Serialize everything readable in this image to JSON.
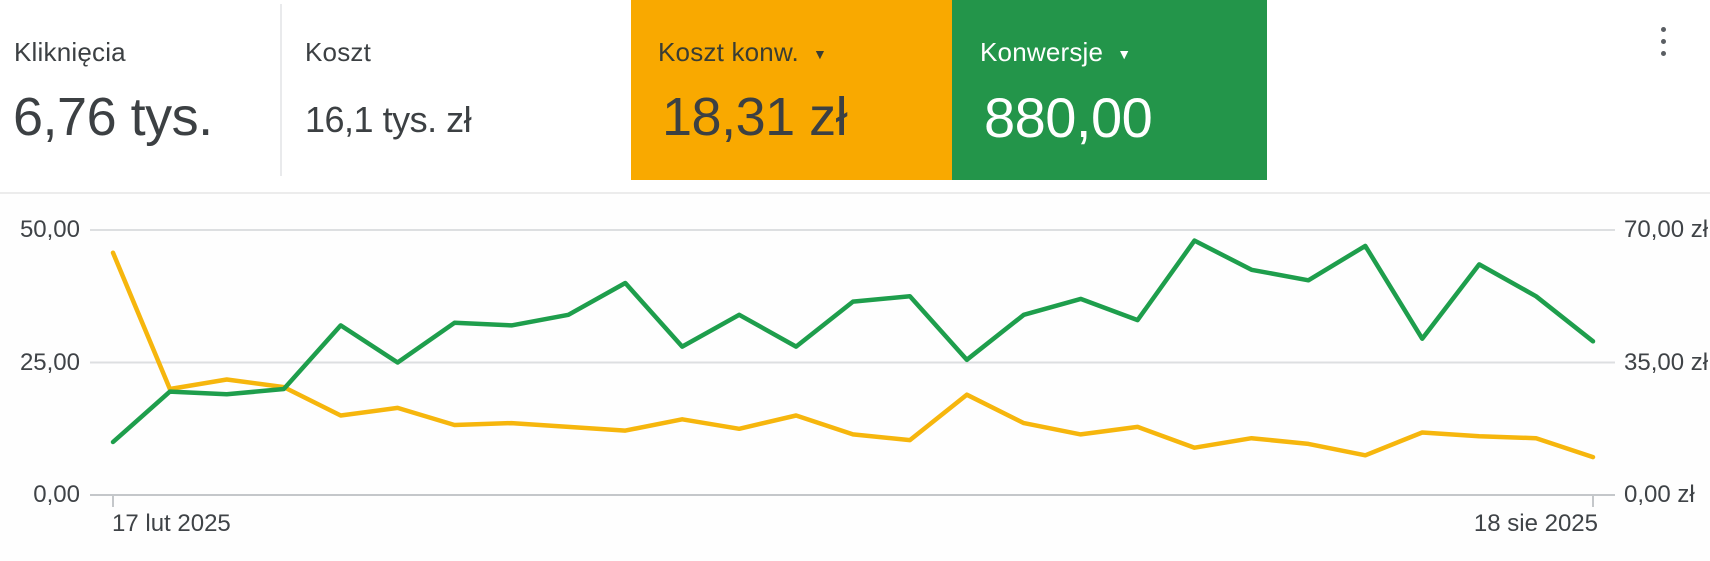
{
  "header": {
    "cards": [
      {
        "id": "clicks",
        "label": "Kliknięcia",
        "value": "6,76 tys.",
        "selected": false
      },
      {
        "id": "cost",
        "label": "Koszt",
        "value": "16,1 tys. zł",
        "selected": false
      },
      {
        "id": "cost_per_conv",
        "label": "Koszt konw.",
        "value": "18,31 zł",
        "selected": true
      },
      {
        "id": "conversions",
        "label": "Konwersje",
        "value": "880,00",
        "selected": true
      }
    ],
    "dropdown_arrow_icon": "▼",
    "more_options_icon": "kebab-menu"
  },
  "colors": {
    "card_orange": "#F9A900",
    "card_green": "#23954A",
    "line_orange": "#F6B60D",
    "line_green": "#1E9E4C",
    "grid": "#DDDFE1",
    "axis": "#C4C7CA",
    "text_dark": "#3C4043",
    "text_on_green": "#FFFFFF"
  },
  "chart_data": {
    "type": "line",
    "x_points": 27,
    "x_tick_labels": [
      "17 lut 2025",
      "18 sie 2025"
    ],
    "left_axis": {
      "ticks": [
        "0,00",
        "25,00",
        "50,00"
      ],
      "range": [
        0,
        50
      ]
    },
    "right_axis": {
      "ticks": [
        "0,00 zł",
        "35,00 zł",
        "70,00 zł"
      ],
      "range": [
        0,
        70
      ]
    },
    "grid": true,
    "legend_position": "none",
    "series": [
      {
        "name": "Koszt konw.",
        "axis": "right",
        "color": "#F6B60D",
        "values": [
          64,
          28,
          30.5,
          28.5,
          21,
          23,
          18.5,
          19,
          18,
          17,
          20,
          17.5,
          21,
          16,
          14.5,
          26.5,
          19,
          16,
          18,
          12.5,
          15,
          13.5,
          10.5,
          16.5,
          15.5,
          15,
          10
        ]
      },
      {
        "name": "Konwersje",
        "axis": "left",
        "color": "#1E9E4C",
        "values": [
          10,
          19.5,
          19,
          20,
          32,
          25,
          32.5,
          32,
          34,
          40,
          28,
          34,
          28,
          36.5,
          37.5,
          25.5,
          34,
          37,
          33,
          48,
          42.5,
          40.5,
          47,
          29.5,
          43.5,
          37.5,
          29
        ]
      }
    ]
  }
}
